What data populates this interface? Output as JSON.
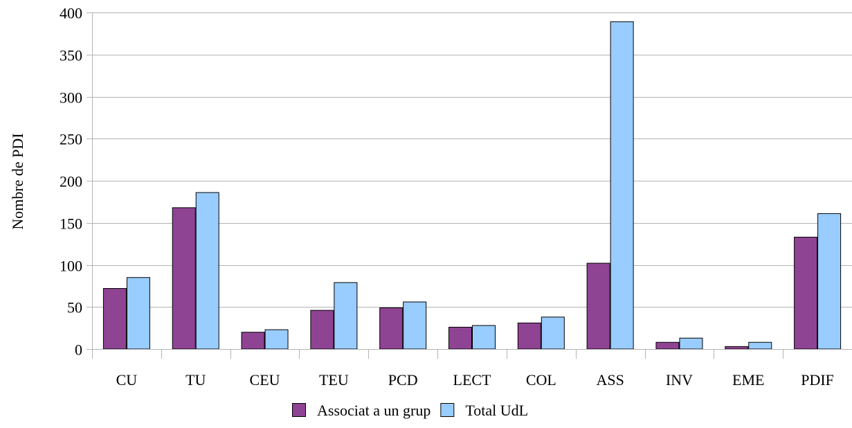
{
  "chart_data": {
    "type": "bar",
    "title": "",
    "xlabel": "",
    "ylabel": "Nombre de PDI",
    "ylim": [
      0,
      400
    ],
    "yticks": [
      0,
      50,
      100,
      150,
      200,
      250,
      300,
      350,
      400
    ],
    "grid": true,
    "legend_position": "bottom",
    "categories": [
      "CU",
      "TU",
      "CEU",
      "TEU",
      "PCD",
      "LECT",
      "COL",
      "ASS",
      "INV",
      "EME",
      "PDIF"
    ],
    "series": [
      {
        "name": "Associat a un grup",
        "color": "#8F4393",
        "values": [
          72,
          168,
          20,
          46,
          49,
          26,
          31,
          102,
          8,
          3,
          133
        ]
      },
      {
        "name": "Total UdL",
        "color": "#99CCFF",
        "values": [
          85,
          186,
          23,
          79,
          56,
          28,
          38,
          389,
          13,
          8,
          161
        ]
      }
    ]
  }
}
